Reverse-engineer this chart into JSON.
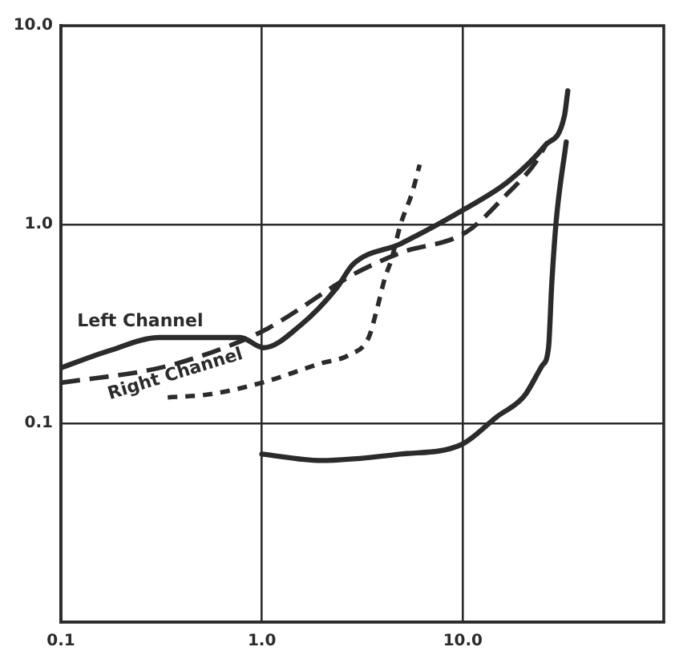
{
  "chart_data": {
    "type": "line",
    "log": "xy",
    "xlim": [
      0.1,
      100
    ],
    "ylim": [
      0.01,
      10
    ],
    "xticks": [
      {
        "value": 0.1,
        "label": "0.1"
      },
      {
        "value": 1,
        "label": "1.0"
      },
      {
        "value": 10,
        "label": "10.0"
      }
    ],
    "yticks": [
      {
        "value": 0.1,
        "label": "0.1"
      },
      {
        "value": 1,
        "label": "1.0"
      },
      {
        "value": 10,
        "label": "10.0"
      }
    ],
    "grid": true,
    "series": [
      {
        "name": "Left Channel",
        "color": "#2b2b2b",
        "line_style": "solid",
        "x": [
          0.1,
          0.17,
          0.31,
          0.57,
          0.78,
          1.02,
          1.55,
          2.36,
          2.84,
          4.9,
          10.3,
          16.9,
          25.7,
          32,
          33.3
        ],
        "values": [
          0.19,
          0.23,
          0.27,
          0.27,
          0.27,
          0.24,
          0.31,
          0.48,
          0.63,
          0.8,
          1.2,
          1.65,
          2.5,
          3.5,
          4.7
        ]
      },
      {
        "name": "Right Channel",
        "color": "#2b2b2b",
        "line_style": "dashed",
        "x": [
          0.1,
          0.31,
          0.65,
          1.07,
          2.36,
          2.84,
          4.9,
          10.3,
          16.9,
          22.6,
          26.4
        ],
        "values": [
          0.16,
          0.19,
          0.24,
          0.3,
          0.5,
          0.56,
          0.72,
          0.91,
          1.45,
          2.0,
          2.6
        ]
      },
      {
        "color": "#2b2b2b",
        "line_style": "dashed",
        "x": [
          0.34,
          0.55,
          1.0,
          1.96,
          2.7,
          3.4,
          3.7,
          4.1,
          4.4,
          4.9,
          5.6,
          6.1
        ],
        "values": [
          0.135,
          0.14,
          0.16,
          0.2,
          0.22,
          0.27,
          0.36,
          0.54,
          0.66,
          1.0,
          1.45,
          2.0
        ]
      },
      {
        "color": "#2b2b2b",
        "line_style": "solid",
        "x": [
          1.0,
          1.96,
          4.9,
          9.8,
          14.8,
          20.2,
          24.8,
          26.7,
          27.7,
          29.2,
          32.7
        ],
        "values": [
          0.07,
          0.065,
          0.07,
          0.078,
          0.108,
          0.137,
          0.195,
          0.24,
          0.5,
          1.06,
          2.6
        ]
      }
    ]
  }
}
